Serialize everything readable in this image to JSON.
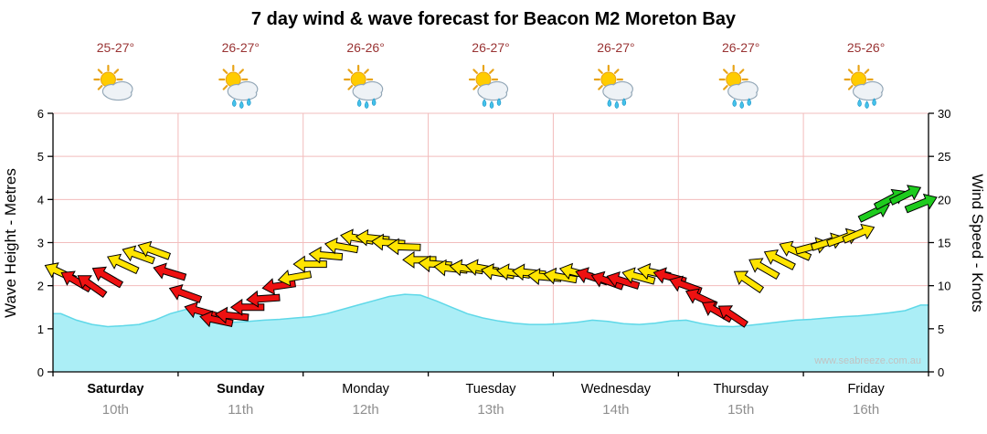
{
  "title": "7 day wind & wave forecast for Beacon M2 Moreton Bay",
  "watermark": "www.seabreeze.com.au",
  "axes": {
    "left_title": "Wave Height - Metres",
    "right_title": "Wind Speed - Knots",
    "left_ticks": [
      0,
      1,
      2,
      3,
      4,
      5,
      6
    ],
    "right_ticks": [
      0,
      5,
      10,
      15,
      20,
      25,
      30
    ]
  },
  "chart_data": {
    "type": "area_line_with_wind_arrows",
    "title": "7 day wind & wave forecast for Beacon M2 Moreton Bay",
    "wave_axis": {
      "label": "Wave Height - Metres",
      "range": [
        0,
        6
      ],
      "unit": "m",
      "grid": true
    },
    "wind_axis": {
      "label": "Wind Speed - Knots",
      "range": [
        0,
        30
      ],
      "unit": "kn"
    },
    "days": [
      {
        "name": "Saturday",
        "date": "10th",
        "temp": "25-27°",
        "icon": "sun-cloud",
        "weekend": true
      },
      {
        "name": "Sunday",
        "date": "11th",
        "temp": "26-27°",
        "icon": "sun-cloud-showers",
        "weekend": true
      },
      {
        "name": "Monday",
        "date": "12th",
        "temp": "26-26°",
        "icon": "sun-cloud-showers",
        "weekend": false
      },
      {
        "name": "Tuesday",
        "date": "13th",
        "temp": "26-27°",
        "icon": "sun-cloud-showers",
        "weekend": false
      },
      {
        "name": "Wednesday",
        "date": "14th",
        "temp": "26-27°",
        "icon": "sun-cloud-showers",
        "weekend": false
      },
      {
        "name": "Thursday",
        "date": "15th",
        "temp": "26-27°",
        "icon": "sun-cloud-showers",
        "weekend": false
      },
      {
        "name": "Friday",
        "date": "16th",
        "temp": "25-26°",
        "icon": "sun-cloud-showers",
        "weekend": false
      }
    ],
    "wave_height_m": {
      "points_per_day": 8,
      "values": [
        1.35,
        1.2,
        1.1,
        1.05,
        1.07,
        1.1,
        1.2,
        1.35,
        1.45,
        1.35,
        1.2,
        1.15,
        1.17,
        1.2,
        1.22,
        1.25,
        1.28,
        1.35,
        1.45,
        1.55,
        1.65,
        1.75,
        1.8,
        1.78,
        1.65,
        1.5,
        1.35,
        1.25,
        1.18,
        1.13,
        1.1,
        1.1,
        1.12,
        1.15,
        1.2,
        1.17,
        1.12,
        1.1,
        1.13,
        1.18,
        1.2,
        1.12,
        1.06,
        1.05,
        1.08,
        1.12,
        1.16,
        1.2,
        1.22,
        1.25,
        1.28,
        1.3,
        1.33,
        1.37,
        1.42,
        1.55
      ]
    },
    "wind": {
      "points_per_day": 8,
      "arrows": [
        {
          "kn": 11.5,
          "dir": 205,
          "c": "y"
        },
        {
          "kn": 10.5,
          "dir": 210,
          "c": "r"
        },
        {
          "kn": 10,
          "dir": 215,
          "c": "r"
        },
        {
          "kn": 11,
          "dir": 210,
          "c": "r"
        },
        {
          "kn": 12.5,
          "dir": 205,
          "c": "y"
        },
        {
          "kn": 13.5,
          "dir": 200,
          "c": "y"
        },
        {
          "kn": 14,
          "dir": 200,
          "c": "y"
        },
        {
          "kn": 11.5,
          "dir": 197,
          "c": "r"
        },
        {
          "kn": 9,
          "dir": 200,
          "c": "r"
        },
        {
          "kn": 7,
          "dir": 196,
          "c": "r"
        },
        {
          "kn": 6,
          "dir": 192,
          "c": "r"
        },
        {
          "kn": 6.5,
          "dir": 186,
          "c": "r"
        },
        {
          "kn": 7.5,
          "dir": 180,
          "c": "r"
        },
        {
          "kn": 8.5,
          "dir": 176,
          "c": "r"
        },
        {
          "kn": 10,
          "dir": 172,
          "c": "r"
        },
        {
          "kn": 11,
          "dir": 170,
          "c": "y"
        },
        {
          "kn": 12.5,
          "dir": 180,
          "c": "y"
        },
        {
          "kn": 13.5,
          "dir": 185,
          "c": "y"
        },
        {
          "kn": 14.5,
          "dir": 190,
          "c": "y"
        },
        {
          "kn": 15.5,
          "dir": 190,
          "c": "y"
        },
        {
          "kn": 15.5,
          "dir": 186,
          "c": "y"
        },
        {
          "kn": 15,
          "dir": 184,
          "c": "y"
        },
        {
          "kn": 14.5,
          "dir": 182,
          "c": "y"
        },
        {
          "kn": 13,
          "dir": 180,
          "c": "y"
        },
        {
          "kn": 12.5,
          "dir": 184,
          "c": "y"
        },
        {
          "kn": 12,
          "dir": 186,
          "c": "y"
        },
        {
          "kn": 12,
          "dir": 188,
          "c": "y"
        },
        {
          "kn": 12,
          "dir": 190,
          "c": "y"
        },
        {
          "kn": 11.5,
          "dir": 190,
          "c": "y"
        },
        {
          "kn": 11.5,
          "dir": 188,
          "c": "y"
        },
        {
          "kn": 11.5,
          "dir": 186,
          "c": "y"
        },
        {
          "kn": 11,
          "dir": 185,
          "c": "y"
        },
        {
          "kn": 11,
          "dir": 190,
          "c": "y"
        },
        {
          "kn": 11.5,
          "dir": 194,
          "c": "y"
        },
        {
          "kn": 11,
          "dir": 198,
          "c": "r"
        },
        {
          "kn": 10.5,
          "dir": 200,
          "c": "r"
        },
        {
          "kn": 10.5,
          "dir": 197,
          "c": "r"
        },
        {
          "kn": 11,
          "dir": 195,
          "c": "y"
        },
        {
          "kn": 11.5,
          "dir": 192,
          "c": "y"
        },
        {
          "kn": 11,
          "dir": 195,
          "c": "r"
        },
        {
          "kn": 10,
          "dir": 200,
          "c": "r"
        },
        {
          "kn": 8.5,
          "dir": 205,
          "c": "r"
        },
        {
          "kn": 7,
          "dir": 210,
          "c": "r"
        },
        {
          "kn": 6.5,
          "dir": 214,
          "c": "r"
        },
        {
          "kn": 10.5,
          "dir": 214,
          "c": "y"
        },
        {
          "kn": 12,
          "dir": 210,
          "c": "y"
        },
        {
          "kn": 13,
          "dir": 207,
          "c": "y"
        },
        {
          "kn": 14,
          "dir": 204,
          "c": "y"
        },
        {
          "kn": 14.5,
          "dir": 345,
          "c": "y"
        },
        {
          "kn": 15,
          "dir": 342,
          "c": "y"
        },
        {
          "kn": 15.5,
          "dir": 340,
          "c": "y"
        },
        {
          "kn": 16,
          "dir": 337,
          "c": "y"
        },
        {
          "kn": 18.5,
          "dir": 334,
          "c": "g"
        },
        {
          "kn": 20,
          "dir": 332,
          "c": "g"
        },
        {
          "kn": 20.5,
          "dir": 334,
          "c": "g"
        },
        {
          "kn": 19.5,
          "dir": 338,
          "c": "g"
        }
      ]
    },
    "colors": {
      "wave_fill": "#abeef6",
      "wave_stroke": "#5fd8e8",
      "grid": "#f2bcbc",
      "axis": "#000000",
      "arrow_red": "#ee1111",
      "arrow_yellow": "#ffe400",
      "arrow_green": "#1ecb1e",
      "temp_text": "#993333",
      "date_text": "#8f8f8f",
      "day_text": "#000000"
    }
  }
}
